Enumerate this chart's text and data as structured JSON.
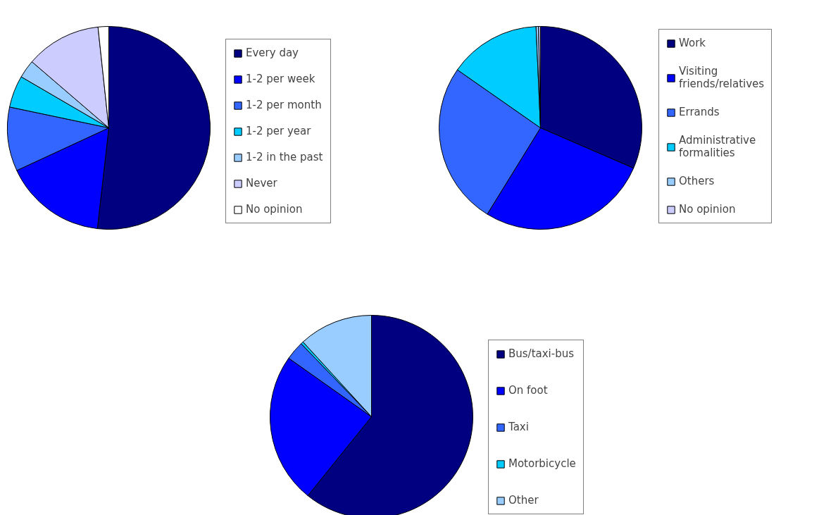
{
  "chart_data": [
    {
      "type": "pie",
      "legend": "right",
      "categories": [
        "Every day",
        "1-2 per week",
        "1-2 per month",
        "1-2 per year",
        "1-2 in the past",
        "Never",
        "No opinion"
      ],
      "values": [
        51.8,
        16.3,
        10.2,
        5.1,
        2.9,
        12.0,
        1.7
      ],
      "colors": [
        "#000080",
        "#0000ff",
        "#3366ff",
        "#00ccff",
        "#99ccff",
        "#ccccff",
        "#ffffff"
      ]
    },
    {
      "type": "pie",
      "legend": "right",
      "categories": [
        "Work",
        "Visiting friends/relatives",
        "Errands",
        "Administrative formalities",
        "Others",
        "No opinion"
      ],
      "values": [
        31.5,
        27.3,
        25.9,
        14.6,
        0.4,
        0.3
      ],
      "colors": [
        "#000080",
        "#0000ff",
        "#3366ff",
        "#00ccff",
        "#99ccff",
        "#ccccff"
      ]
    },
    {
      "type": "pie",
      "legend": "right",
      "categories": [
        "Bus/taxi-bus",
        "On foot",
        "Taxi",
        "Motorbicycle",
        "Other"
      ],
      "values": [
        60.8,
        24.0,
        3.0,
        0.4,
        11.8
      ],
      "colors": [
        "#000080",
        "#0000ff",
        "#3366ff",
        "#00ccff",
        "#99ccff"
      ]
    }
  ]
}
